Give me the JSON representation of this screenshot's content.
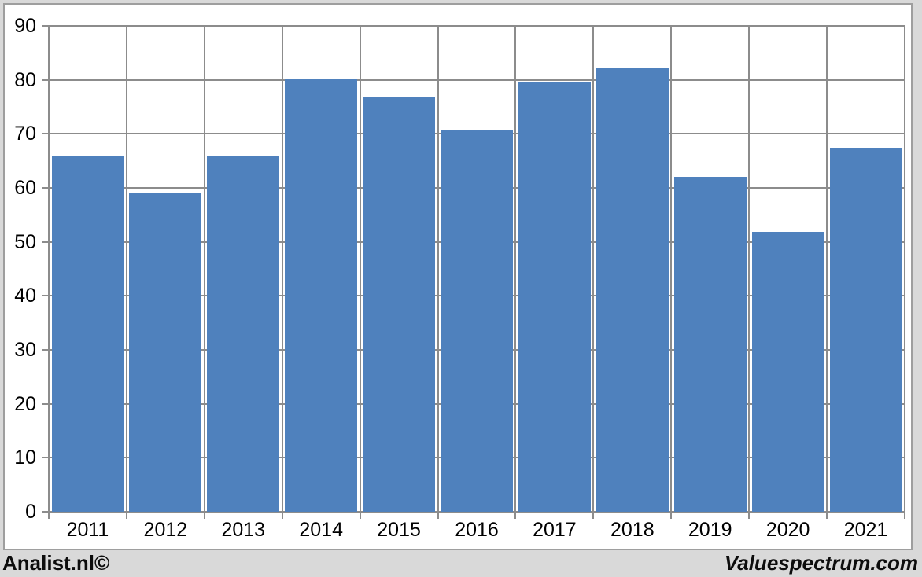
{
  "page": {
    "background_color": "#d9d9d9",
    "panel_background": "#ffffff",
    "panel_border_color": "#9e9e9e"
  },
  "footer": {
    "left_text": "Analist.nl©",
    "right_text": "Valuespectrum.com"
  },
  "chart_data": {
    "type": "bar",
    "title": "",
    "xlabel": "",
    "ylabel": "",
    "categories": [
      "2011",
      "2012",
      "2013",
      "2014",
      "2015",
      "2016",
      "2017",
      "2018",
      "2019",
      "2020",
      "2021"
    ],
    "values": [
      65.8,
      59.0,
      65.8,
      80.3,
      76.8,
      70.6,
      79.6,
      82.2,
      62.0,
      51.9,
      67.4
    ],
    "ylim": [
      0,
      90
    ],
    "yticks": [
      0,
      10,
      20,
      30,
      40,
      50,
      60,
      70,
      80,
      90
    ],
    "grid": true,
    "legend_position": "none",
    "bar_color": "#4f81bd",
    "gridline_color": "#8c8c8c",
    "axis_color": "#8c8c8c",
    "label_color": "#000000"
  }
}
